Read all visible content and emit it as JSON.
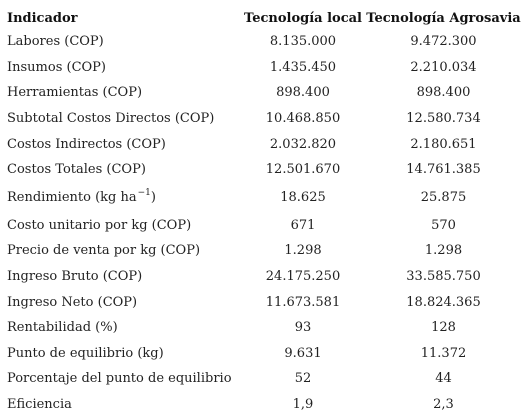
{
  "table": {
    "headers": [
      "Indicador",
      "Tecnología local",
      "Tecnología Agrosavia"
    ],
    "rows": [
      {
        "label": "Labores (COP)",
        "local": "8.135.000",
        "agrosavia": "9.472.300"
      },
      {
        "label": "Insumos (COP)",
        "local": "1.435.450",
        "agrosavia": "2.210.034"
      },
      {
        "label": "Herramientas (COP)",
        "local": "898.400",
        "agrosavia": "898.400"
      },
      {
        "label": "Subtotal Costos Directos (COP)",
        "local": "10.468.850",
        "agrosavia": "12.580.734"
      },
      {
        "label": "Costos Indirectos (COP)",
        "local": "2.032.820",
        "agrosavia": "2.180.651"
      },
      {
        "label": "Costos Totales (COP)",
        "local": "12.501.670",
        "agrosavia": "14.761.385"
      },
      {
        "label_pre": "Rendimiento (kg ha",
        "label_sup": "−1",
        "label_post": ")",
        "local": "18.625",
        "agrosavia": "25.875"
      },
      {
        "label": "Costo unitario por kg (COP)",
        "local": "671",
        "agrosavia": "570"
      },
      {
        "label": "Precio de venta por kg (COP)",
        "local": "1.298",
        "agrosavia": "1.298"
      },
      {
        "label": "Ingreso Bruto (COP)",
        "local": "24.175.250",
        "agrosavia": "33.585.750"
      },
      {
        "label": "Ingreso Neto (COP)",
        "local": "11.673.581",
        "agrosavia": "18.824.365"
      },
      {
        "label": "Rentabilidad (%)",
        "local": "93",
        "agrosavia": "128"
      },
      {
        "label": "Punto de equilibrio (kg)",
        "local": "9.631",
        "agrosavia": "11.372"
      },
      {
        "label": "Porcentaje del punto de equilibrio",
        "local": "52",
        "agrosavia": "44"
      },
      {
        "label": "Eficiencia",
        "local": "1,9",
        "agrosavia": "2,3"
      }
    ]
  }
}
